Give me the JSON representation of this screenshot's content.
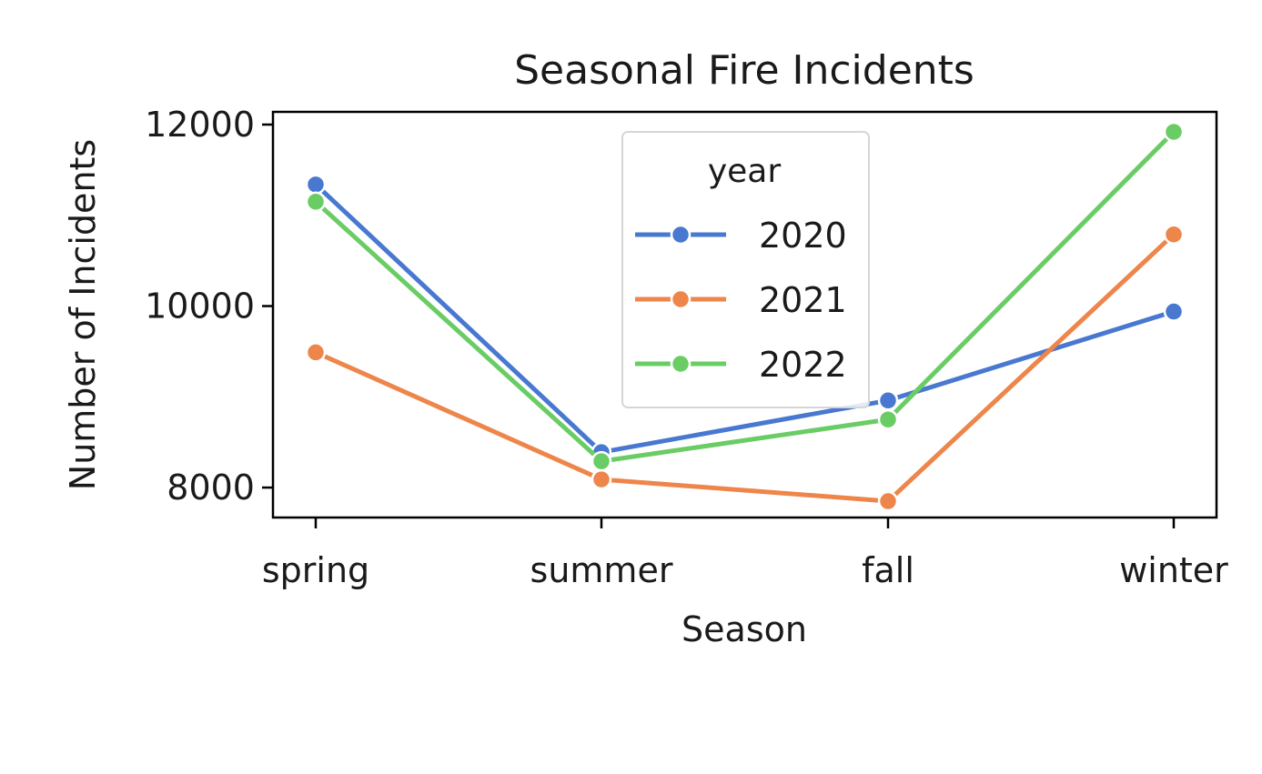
{
  "chart_data": {
    "type": "line",
    "title": "Seasonal Fire Incidents",
    "xlabel": "Season",
    "ylabel": "Number of Incidents",
    "categories": [
      "spring",
      "summer",
      "fall",
      "winter"
    ],
    "y_ticks": [
      8000,
      10000,
      12000
    ],
    "y_tick_labels": [
      "8000",
      "10000",
      "12000"
    ],
    "ylim": [
      7670,
      12140
    ],
    "grid": false,
    "legend": {
      "title": "year",
      "placement": "top-center"
    },
    "series": [
      {
        "name": "2020",
        "color": "#4878d0",
        "values": [
          11340,
          8390,
          8960,
          9940
        ]
      },
      {
        "name": "2021",
        "color": "#ee854a",
        "values": [
          9490,
          8090,
          7850,
          10790
        ]
      },
      {
        "name": "2022",
        "color": "#6acc64",
        "values": [
          11150,
          8290,
          8750,
          11920
        ]
      }
    ]
  }
}
